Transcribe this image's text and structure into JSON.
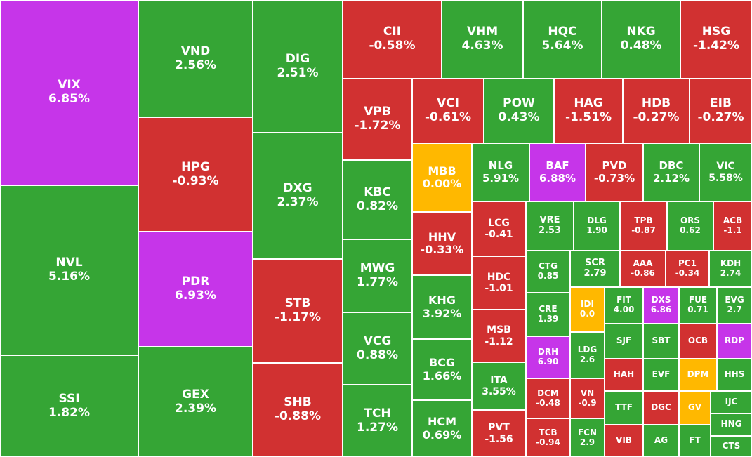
{
  "chart_data": {
    "type": "treemap",
    "colors": {
      "up": "#35a535",
      "down": "#d13131",
      "ceiling": "#c635e9",
      "reference": "#ffb800"
    },
    "tiles": [
      {
        "ticker": "VIX",
        "change": "6.85%",
        "status": "ceiling"
      },
      {
        "ticker": "NVL",
        "change": "5.16%",
        "status": "up"
      },
      {
        "ticker": "SSI",
        "change": "1.82%",
        "status": "up"
      },
      {
        "ticker": "VND",
        "change": "2.56%",
        "status": "up"
      },
      {
        "ticker": "HPG",
        "change": "-0.93%",
        "status": "down"
      },
      {
        "ticker": "PDR",
        "change": "6.93%",
        "status": "ceiling"
      },
      {
        "ticker": "GEX",
        "change": "2.39%",
        "status": "up"
      },
      {
        "ticker": "DIG",
        "change": "2.51%",
        "status": "up"
      },
      {
        "ticker": "DXG",
        "change": "2.37%",
        "status": "up"
      },
      {
        "ticker": "STB",
        "change": "-1.17%",
        "status": "down"
      },
      {
        "ticker": "SHB",
        "change": "-0.88%",
        "status": "down"
      },
      {
        "ticker": "CII",
        "change": "-0.58%",
        "status": "down"
      },
      {
        "ticker": "VHM",
        "change": "4.63%",
        "status": "up"
      },
      {
        "ticker": "HQC",
        "change": "5.64%",
        "status": "up"
      },
      {
        "ticker": "NKG",
        "change": "0.48%",
        "status": "up"
      },
      {
        "ticker": "HSG",
        "change": "-1.42%",
        "status": "down"
      },
      {
        "ticker": "VPB",
        "change": "-1.72%",
        "status": "down"
      },
      {
        "ticker": "KBC",
        "change": "0.82%",
        "status": "up"
      },
      {
        "ticker": "MWG",
        "change": "1.77%",
        "status": "up"
      },
      {
        "ticker": "VCG",
        "change": "0.88%",
        "status": "up"
      },
      {
        "ticker": "TCH",
        "change": "1.27%",
        "status": "up"
      },
      {
        "ticker": "VCI",
        "change": "-0.61%",
        "status": "down"
      },
      {
        "ticker": "POW",
        "change": "0.43%",
        "status": "up"
      },
      {
        "ticker": "HAG",
        "change": "-1.51%",
        "status": "down"
      },
      {
        "ticker": "HDB",
        "change": "-0.27%",
        "status": "down"
      },
      {
        "ticker": "EIB",
        "change": "-0.27%",
        "status": "down"
      },
      {
        "ticker": "MBB",
        "change": "0.00%",
        "status": "reference"
      },
      {
        "ticker": "NLG",
        "change": "5.91%",
        "status": "up"
      },
      {
        "ticker": "BAF",
        "change": "6.88%",
        "status": "ceiling"
      },
      {
        "ticker": "PVD",
        "change": "-0.73%",
        "status": "down"
      },
      {
        "ticker": "DBC",
        "change": "2.12%",
        "status": "up"
      },
      {
        "ticker": "VIC",
        "change": "5.58%",
        "status": "up"
      },
      {
        "ticker": "HHV",
        "change": "-0.33%",
        "status": "down"
      },
      {
        "ticker": "KHG",
        "change": "3.92%",
        "status": "up"
      },
      {
        "ticker": "BCG",
        "change": "1.66%",
        "status": "up"
      },
      {
        "ticker": "HCM",
        "change": "0.69%",
        "status": "up"
      },
      {
        "ticker": "LCG",
        "change": "-0.41",
        "status": "down"
      },
      {
        "ticker": "HDC",
        "change": "-1.01",
        "status": "down"
      },
      {
        "ticker": "MSB",
        "change": "-1.12",
        "status": "down"
      },
      {
        "ticker": "ITA",
        "change": "3.55%",
        "status": "up"
      },
      {
        "ticker": "PVT",
        "change": "-1.56",
        "status": "down"
      },
      {
        "ticker": "VRE",
        "change": "2.53",
        "status": "up"
      },
      {
        "ticker": "DLG",
        "change": "1.90",
        "status": "up"
      },
      {
        "ticker": "TPB",
        "change": "-0.87",
        "status": "down"
      },
      {
        "ticker": "ORS",
        "change": "0.62",
        "status": "up"
      },
      {
        "ticker": "ACB",
        "change": "-1.1",
        "status": "down"
      },
      {
        "ticker": "CTG",
        "change": "0.85",
        "status": "up"
      },
      {
        "ticker": "SCR",
        "change": "2.79",
        "status": "up"
      },
      {
        "ticker": "AAA",
        "change": "-0.86",
        "status": "down"
      },
      {
        "ticker": "PC1",
        "change": "-0.34",
        "status": "down"
      },
      {
        "ticker": "KDH",
        "change": "2.74",
        "status": "up"
      },
      {
        "ticker": "CRE",
        "change": "1.39",
        "status": "up"
      },
      {
        "ticker": "IDI",
        "change": "0.0",
        "status": "reference"
      },
      {
        "ticker": "FIT",
        "change": "4.00",
        "status": "up"
      },
      {
        "ticker": "DXS",
        "change": "6.86",
        "status": "ceiling"
      },
      {
        "ticker": "FUE",
        "change": "0.71",
        "status": "up"
      },
      {
        "ticker": "EVG",
        "change": "2.7",
        "status": "up"
      },
      {
        "ticker": "DRH",
        "change": "6.90",
        "status": "ceiling"
      },
      {
        "ticker": "LDG",
        "change": "2.6",
        "status": "up"
      },
      {
        "ticker": "SJF",
        "change": "",
        "status": "up"
      },
      {
        "ticker": "SBT",
        "change": "",
        "status": "up"
      },
      {
        "ticker": "OCB",
        "change": "",
        "status": "down"
      },
      {
        "ticker": "RDP",
        "change": "",
        "status": "ceiling"
      },
      {
        "ticker": "DCM",
        "change": "-0.48",
        "status": "down"
      },
      {
        "ticker": "VN",
        "change": "-0.9",
        "status": "down"
      },
      {
        "ticker": "HAH",
        "change": "",
        "status": "down"
      },
      {
        "ticker": "EVF",
        "change": "",
        "status": "up"
      },
      {
        "ticker": "DPM",
        "change": "",
        "status": "reference"
      },
      {
        "ticker": "HHS",
        "change": "",
        "status": "up"
      },
      {
        "ticker": "TTF",
        "change": "",
        "status": "up"
      },
      {
        "ticker": "DGC",
        "change": "",
        "status": "down"
      },
      {
        "ticker": "GV",
        "change": "",
        "status": "reference"
      },
      {
        "ticker": "IJC",
        "change": "",
        "status": "up"
      },
      {
        "ticker": "HNG",
        "change": "",
        "status": "up"
      },
      {
        "ticker": "TCB",
        "change": "-0.94",
        "status": "down"
      },
      {
        "ticker": "FCN",
        "change": "2.9",
        "status": "up"
      },
      {
        "ticker": "VIB",
        "change": "",
        "status": "down"
      },
      {
        "ticker": "AG",
        "change": "",
        "status": "up"
      },
      {
        "ticker": "FT",
        "change": "",
        "status": "up"
      },
      {
        "ticker": "CTS",
        "change": "",
        "status": "up"
      }
    ]
  }
}
